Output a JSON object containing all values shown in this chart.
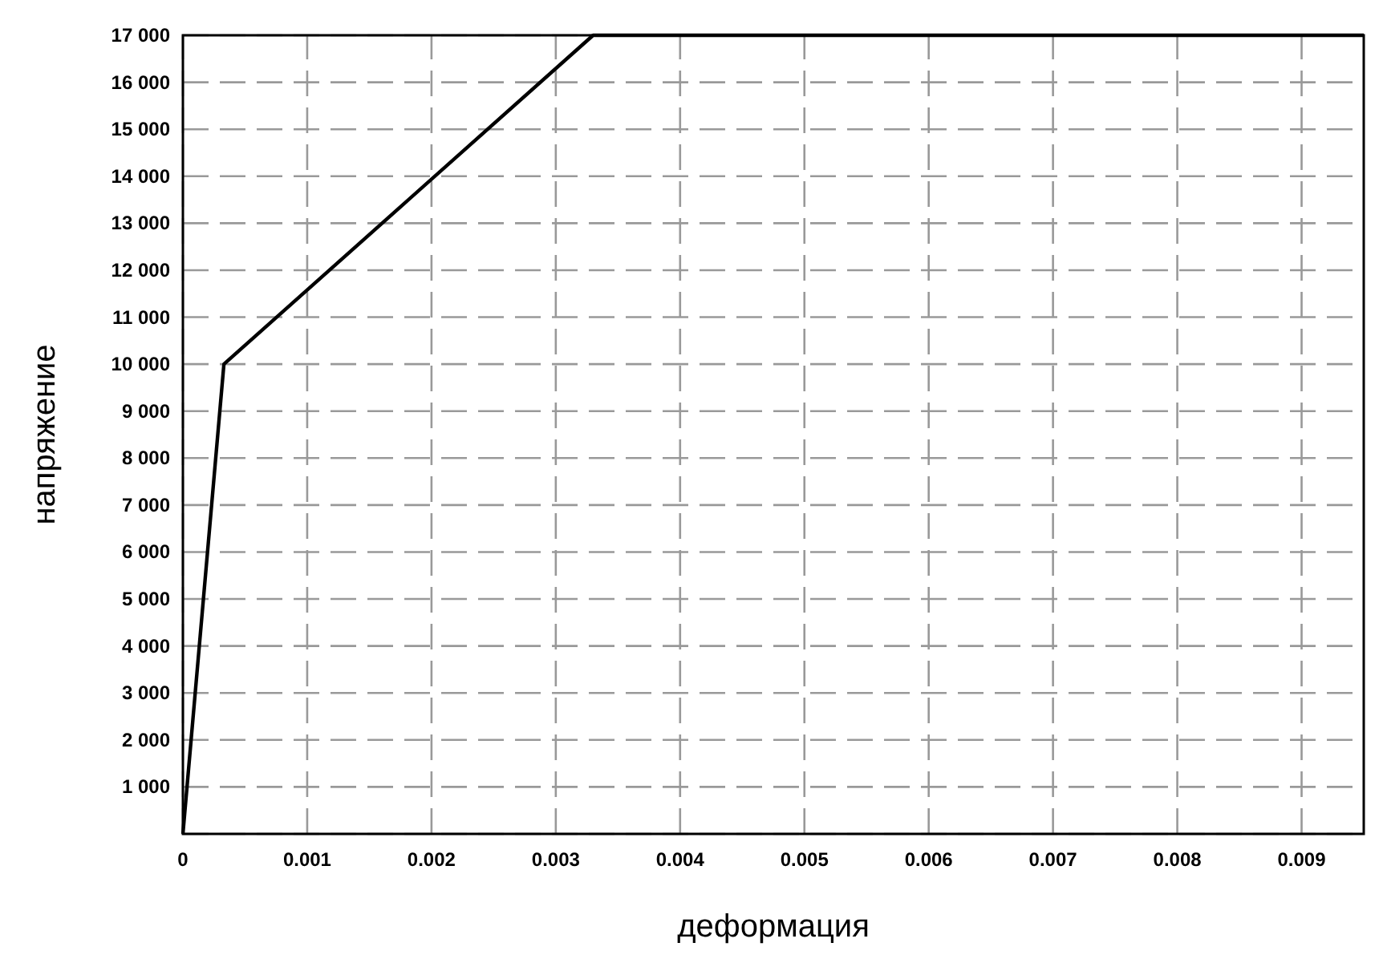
{
  "chart_data": {
    "type": "line",
    "xlabel": "деформация",
    "ylabel": "напряжение",
    "x": [
      0,
      0.00033,
      0.0033,
      0.0095
    ],
    "series": [
      {
        "color": "#000000",
        "values": [
          0,
          10000,
          17000,
          17000
        ]
      }
    ],
    "xlim": [
      0,
      0.0095
    ],
    "ylim": [
      0,
      17000
    ],
    "xticks": [
      0,
      0.001,
      0.002,
      0.003,
      0.004,
      0.005,
      0.006,
      0.007,
      0.008,
      0.009
    ],
    "yticks": [
      {
        "value": 0,
        "label": null
      },
      {
        "value": 1000,
        "label": "1 000"
      },
      {
        "value": 2000,
        "label": "2 000"
      },
      {
        "value": 3000,
        "label": "3 000"
      },
      {
        "value": 4000,
        "label": "4 000"
      },
      {
        "value": 5000,
        "label": "5 000"
      },
      {
        "value": 6000,
        "label": "6 000"
      },
      {
        "value": 7000,
        "label": "7 000"
      },
      {
        "value": 8000,
        "label": "8 000"
      },
      {
        "value": 9000,
        "label": "9 000"
      },
      {
        "value": 10000,
        "label": "10 000"
      },
      {
        "value": 11000,
        "label": "11 000"
      },
      {
        "value": 12000,
        "label": "12 000"
      },
      {
        "value": 13000,
        "label": "13 000"
      },
      {
        "value": 14000,
        "label": "14 000"
      },
      {
        "value": 15000,
        "label": "15 000"
      },
      {
        "value": 16000,
        "label": "16 000"
      },
      {
        "value": 17000,
        "label": "17 000"
      }
    ],
    "grid": true,
    "marker": "none",
    "line_style": "solid"
  }
}
